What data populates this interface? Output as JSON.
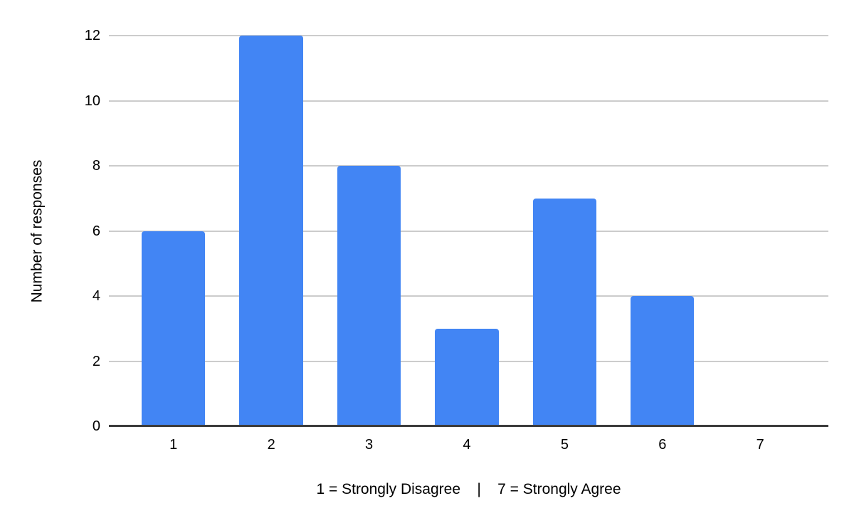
{
  "chart_data": {
    "type": "bar",
    "categories": [
      "1",
      "2",
      "3",
      "4",
      "5",
      "6",
      "7"
    ],
    "values": [
      6,
      12,
      8,
      3,
      7,
      4,
      0
    ],
    "title": "",
    "xlabel": "1 = Strongly Disagree    |    7 = Strongly Agree",
    "ylabel": "Number of responses",
    "ylim": [
      0,
      12
    ],
    "yticks": [
      0,
      2,
      4,
      6,
      8,
      10,
      12
    ],
    "grid": true,
    "legend_position": "none",
    "colors": {
      "bar": "#4285f4",
      "gridline": "#cccccc",
      "axis_line": "#3c3c3c",
      "text": "#000000",
      "background": "#ffffff"
    }
  }
}
